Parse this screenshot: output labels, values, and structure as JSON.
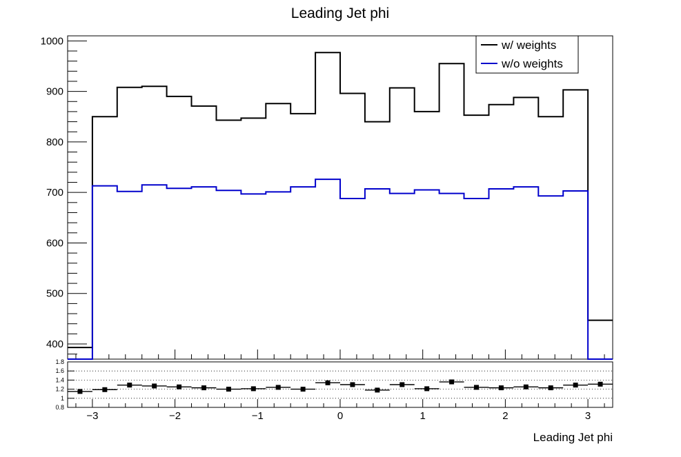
{
  "chart_data": [
    {
      "type": "line",
      "title": "Leading Jet phi",
      "xlabel": "Leading Jet phi",
      "ylabel": "",
      "xlim": [
        -3.3,
        3.3
      ],
      "ylim": [
        370,
        1010
      ],
      "x_ticks": [
        -3,
        -2,
        -1,
        0,
        1,
        2,
        3
      ],
      "x_tick_labels": [
        "−3",
        "−2",
        "−1",
        "0",
        "1",
        "2",
        "3"
      ],
      "y_ticks": [
        400,
        500,
        600,
        700,
        800,
        900,
        1000
      ],
      "y_tick_labels": [
        "400",
        "500",
        "600",
        "700",
        "800",
        "900",
        "1000"
      ],
      "bin_edges": [
        -3.3,
        -3.0,
        -2.7,
        -2.4,
        -2.1,
        -1.8,
        -1.5,
        -1.2,
        -0.9,
        -0.6,
        -0.3,
        0.0,
        0.3,
        0.6,
        0.9,
        1.2,
        1.5,
        1.8,
        2.1,
        2.4,
        2.7,
        3.0,
        3.3
      ],
      "legend_position": "top-right",
      "series": [
        {
          "name": "w/ weights",
          "color": "#000000",
          "values": [
            393,
            850,
            908,
            910,
            890,
            871,
            843,
            847,
            876,
            856,
            977,
            896,
            840,
            907,
            860,
            955,
            853,
            874,
            888,
            850,
            903,
            447
          ]
        },
        {
          "name": "w/o weights",
          "color": "#0000cc",
          "values": [
            0,
            713,
            702,
            715,
            708,
            711,
            704,
            697,
            701,
            711,
            726,
            688,
            707,
            698,
            705,
            698,
            688,
            707,
            711,
            693,
            703,
            0
          ]
        }
      ]
    },
    {
      "type": "scatter",
      "title": "",
      "xlabel": "",
      "ylabel": "",
      "xlim": [
        -3.3,
        3.3
      ],
      "ylim": [
        0.8,
        1.8
      ],
      "y_ticks": [
        0.8,
        1,
        1.2,
        1.4,
        1.6,
        1.8
      ],
      "y_tick_labels": [
        "0.8",
        "1",
        "1.2",
        "1.4",
        "1.6",
        "1.8"
      ],
      "grid": "dotted horizontal",
      "ratio": {
        "color": "#000000",
        "x": [
          -3.15,
          -2.85,
          -2.55,
          -2.25,
          -1.95,
          -1.65,
          -1.35,
          -1.05,
          -0.75,
          -0.45,
          -0.15,
          0.15,
          0.45,
          0.75,
          1.05,
          1.35,
          1.65,
          1.95,
          2.25,
          2.55,
          2.85,
          3.15
        ],
        "values": [
          1.15,
          1.19,
          1.29,
          1.27,
          1.25,
          1.23,
          1.2,
          1.21,
          1.24,
          1.2,
          1.34,
          1.3,
          1.18,
          1.3,
          1.21,
          1.36,
          1.24,
          1.23,
          1.25,
          1.23,
          1.29,
          1.31
        ]
      }
    }
  ]
}
